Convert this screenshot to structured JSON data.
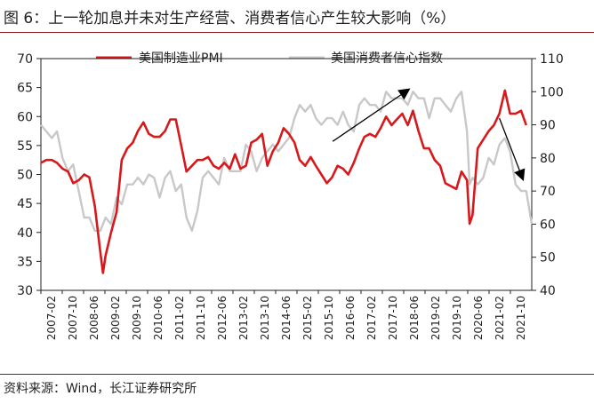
{
  "title": "图 6：上一轮加息并未对生产经营、消费者信心产生较大影响（%）",
  "source": "资料来源：Wind，长江证券研究所",
  "colors": {
    "pmi": "#d7191c",
    "consumer": "#c8c8c8",
    "arrow": "#000000",
    "rule": "#8a1a1a"
  },
  "chart_data": {
    "type": "line",
    "title": "图 6：上一轮加息并未对生产经营、消费者信心产生较大影响（%）",
    "legend_position": "top",
    "x_labels": [
      "2007-02",
      "2007-10",
      "2008-06",
      "2009-02",
      "2009-10",
      "2010-06",
      "2011-02",
      "2011-10",
      "2012-06",
      "2013-02",
      "2013-10",
      "2014-06",
      "2015-02",
      "2015-10",
      "2016-06",
      "2017-02",
      "2017-10",
      "2018-06",
      "2019-02",
      "2019-10",
      "2020-06",
      "2021-02",
      "2021-10"
    ],
    "x_range": [
      2007.083,
      2022.25
    ],
    "y_left": {
      "label": "美国制造业PMI",
      "ylim": [
        30,
        70
      ],
      "ticks": [
        30,
        35,
        40,
        45,
        50,
        55,
        60,
        65,
        70
      ]
    },
    "y_right": {
      "label": "美国消费者信心指数",
      "ylim": [
        40,
        110
      ],
      "ticks": [
        40,
        50,
        60,
        70,
        80,
        90,
        100,
        110
      ]
    },
    "series": [
      {
        "name": "美国制造业PMI",
        "axis": "left",
        "x": [
          2007.083,
          2007.25,
          2007.42,
          2007.58,
          2007.75,
          2007.92,
          2008.08,
          2008.25,
          2008.42,
          2008.58,
          2008.75,
          2008.92,
          2009.0,
          2009.08,
          2009.25,
          2009.42,
          2009.58,
          2009.75,
          2009.92,
          2010.08,
          2010.25,
          2010.42,
          2010.58,
          2010.75,
          2010.92,
          2011.08,
          2011.25,
          2011.42,
          2011.58,
          2011.75,
          2011.92,
          2012.08,
          2012.25,
          2012.42,
          2012.58,
          2012.75,
          2012.92,
          2013.08,
          2013.25,
          2013.42,
          2013.58,
          2013.75,
          2013.92,
          2014.08,
          2014.25,
          2014.42,
          2014.58,
          2014.75,
          2014.92,
          2015.08,
          2015.25,
          2015.42,
          2015.58,
          2015.75,
          2015.92,
          2016.08,
          2016.25,
          2016.42,
          2016.58,
          2016.75,
          2016.92,
          2017.08,
          2017.25,
          2017.42,
          2017.58,
          2017.75,
          2017.92,
          2018.08,
          2018.25,
          2018.42,
          2018.58,
          2018.75,
          2018.92,
          2019.08,
          2019.25,
          2019.42,
          2019.58,
          2019.75,
          2019.92,
          2020.08,
          2020.25,
          2020.33,
          2020.42,
          2020.58,
          2020.75,
          2020.92,
          2021.08,
          2021.25,
          2021.42,
          2021.58,
          2021.75,
          2021.92,
          2022.08
        ],
        "values": [
          52.0,
          52.5,
          52.5,
          52.0,
          51.0,
          50.5,
          48.5,
          49.0,
          50.0,
          49.5,
          44.5,
          36.5,
          33.0,
          36.0,
          40.0,
          43.5,
          52.5,
          54.5,
          55.5,
          57.5,
          59.0,
          57.0,
          56.5,
          56.5,
          57.5,
          59.5,
          59.5,
          55.0,
          50.5,
          51.5,
          52.5,
          52.5,
          53.0,
          51.5,
          51.0,
          52.0,
          51.0,
          53.5,
          51.0,
          51.5,
          55.5,
          56.0,
          57.0,
          51.5,
          54.0,
          55.5,
          58.0,
          57.0,
          55.5,
          52.5,
          51.5,
          53.0,
          51.5,
          50.0,
          48.5,
          49.5,
          51.5,
          51.0,
          50.0,
          52.0,
          54.5,
          56.5,
          57.0,
          56.5,
          58.0,
          60.0,
          58.5,
          59.5,
          60.5,
          58.5,
          61.0,
          57.5,
          54.5,
          54.5,
          52.5,
          51.5,
          48.5,
          48.0,
          47.5,
          50.5,
          49.0,
          41.5,
          43.0,
          54.5,
          56.0,
          57.5,
          58.5,
          60.5,
          64.5,
          60.5,
          60.5,
          61.0,
          58.5
        ]
      },
      {
        "name": "美国消费者信心指数",
        "axis": "right",
        "x": [
          2007.083,
          2007.25,
          2007.42,
          2007.58,
          2007.75,
          2007.92,
          2008.08,
          2008.25,
          2008.42,
          2008.58,
          2008.75,
          2008.92,
          2009.08,
          2009.25,
          2009.42,
          2009.58,
          2009.75,
          2009.92,
          2010.08,
          2010.25,
          2010.42,
          2010.58,
          2010.75,
          2010.92,
          2011.08,
          2011.25,
          2011.42,
          2011.58,
          2011.75,
          2011.92,
          2012.08,
          2012.25,
          2012.42,
          2012.58,
          2012.75,
          2012.92,
          2013.08,
          2013.25,
          2013.42,
          2013.58,
          2013.75,
          2013.92,
          2014.08,
          2014.25,
          2014.42,
          2014.58,
          2014.75,
          2014.92,
          2015.08,
          2015.25,
          2015.42,
          2015.58,
          2015.75,
          2015.92,
          2016.08,
          2016.25,
          2016.42,
          2016.58,
          2016.75,
          2016.92,
          2017.08,
          2017.25,
          2017.42,
          2017.58,
          2017.75,
          2017.92,
          2018.08,
          2018.25,
          2018.42,
          2018.58,
          2018.75,
          2018.92,
          2019.08,
          2019.25,
          2019.42,
          2019.58,
          2019.75,
          2019.92,
          2020.08,
          2020.25,
          2020.33,
          2020.42,
          2020.58,
          2020.75,
          2020.92,
          2021.08,
          2021.25,
          2021.42,
          2021.58,
          2021.75,
          2021.92,
          2022.08,
          2022.25
        ],
        "values": [
          90.0,
          88.0,
          86.0,
          88.0,
          80.0,
          76.0,
          78.0,
          70.0,
          62.0,
          62.0,
          58.0,
          58.0,
          62.0,
          60.0,
          68.0,
          66.0,
          72.0,
          72.0,
          74.0,
          72.0,
          75.0,
          74.0,
          68.0,
          74.0,
          76.0,
          70.0,
          72.0,
          62.0,
          58.0,
          64.0,
          74.0,
          76.0,
          74.0,
          72.0,
          80.0,
          76.0,
          76.0,
          76.0,
          84.0,
          82.0,
          76.0,
          80.0,
          82.0,
          84.0,
          82.0,
          84.0,
          86.0,
          92.0,
          96.0,
          94.0,
          96.0,
          92.0,
          90.0,
          92.0,
          92.0,
          90.0,
          94.0,
          90.0,
          88.0,
          96.0,
          98.0,
          96.0,
          96.0,
          94.0,
          100.0,
          98.0,
          98.0,
          98.0,
          96.0,
          100.0,
          98.0,
          98.0,
          92.0,
          98.0,
          98.0,
          96.0,
          94.0,
          98.0,
          100.0,
          88.0,
          72.0,
          74.0,
          72.0,
          74.0,
          80.0,
          78.0,
          84.0,
          86.0,
          82.0,
          72.0,
          70.0,
          70.0,
          60.0
        ]
      }
    ],
    "annotations": [
      {
        "type": "arrow",
        "axis": "right",
        "from": [
          2016.1,
          85.0
        ],
        "to": [
          2018.5,
          101.0
        ]
      },
      {
        "type": "arrow",
        "axis": "right",
        "from": [
          2021.25,
          92.0
        ],
        "to": [
          2022.0,
          73.0
        ]
      }
    ]
  }
}
